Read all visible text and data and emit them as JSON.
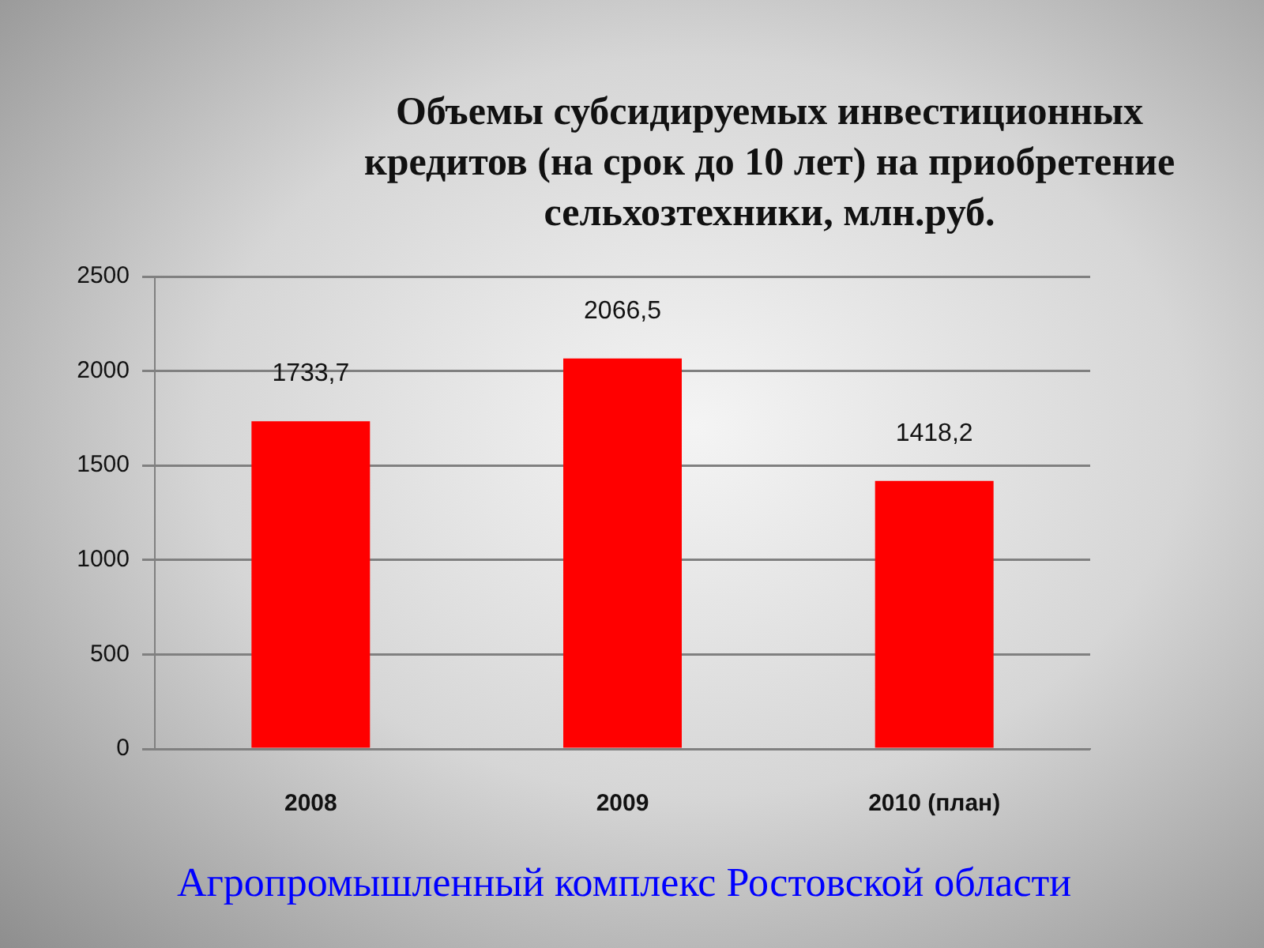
{
  "chart_data": {
    "type": "bar",
    "title": "Объемы субсидируемых инвестиционных кредитов (на срок до 10 лет) на приобретение сельхозтехники, млн.руб.",
    "categories": [
      "2008",
      "2009",
      "2010 (план)"
    ],
    "values": [
      1733.7,
      2066.5,
      1418.2
    ],
    "value_labels": [
      "1733,7",
      "2066,5",
      "1418,2"
    ],
    "color": "#ff0000",
    "ylim": [
      0,
      2500
    ],
    "yticks": [
      0,
      500,
      1000,
      1500,
      2000,
      2500
    ],
    "grid": "y",
    "annotations": [
      "Агропромышленный комплекс Ростовской области"
    ]
  }
}
